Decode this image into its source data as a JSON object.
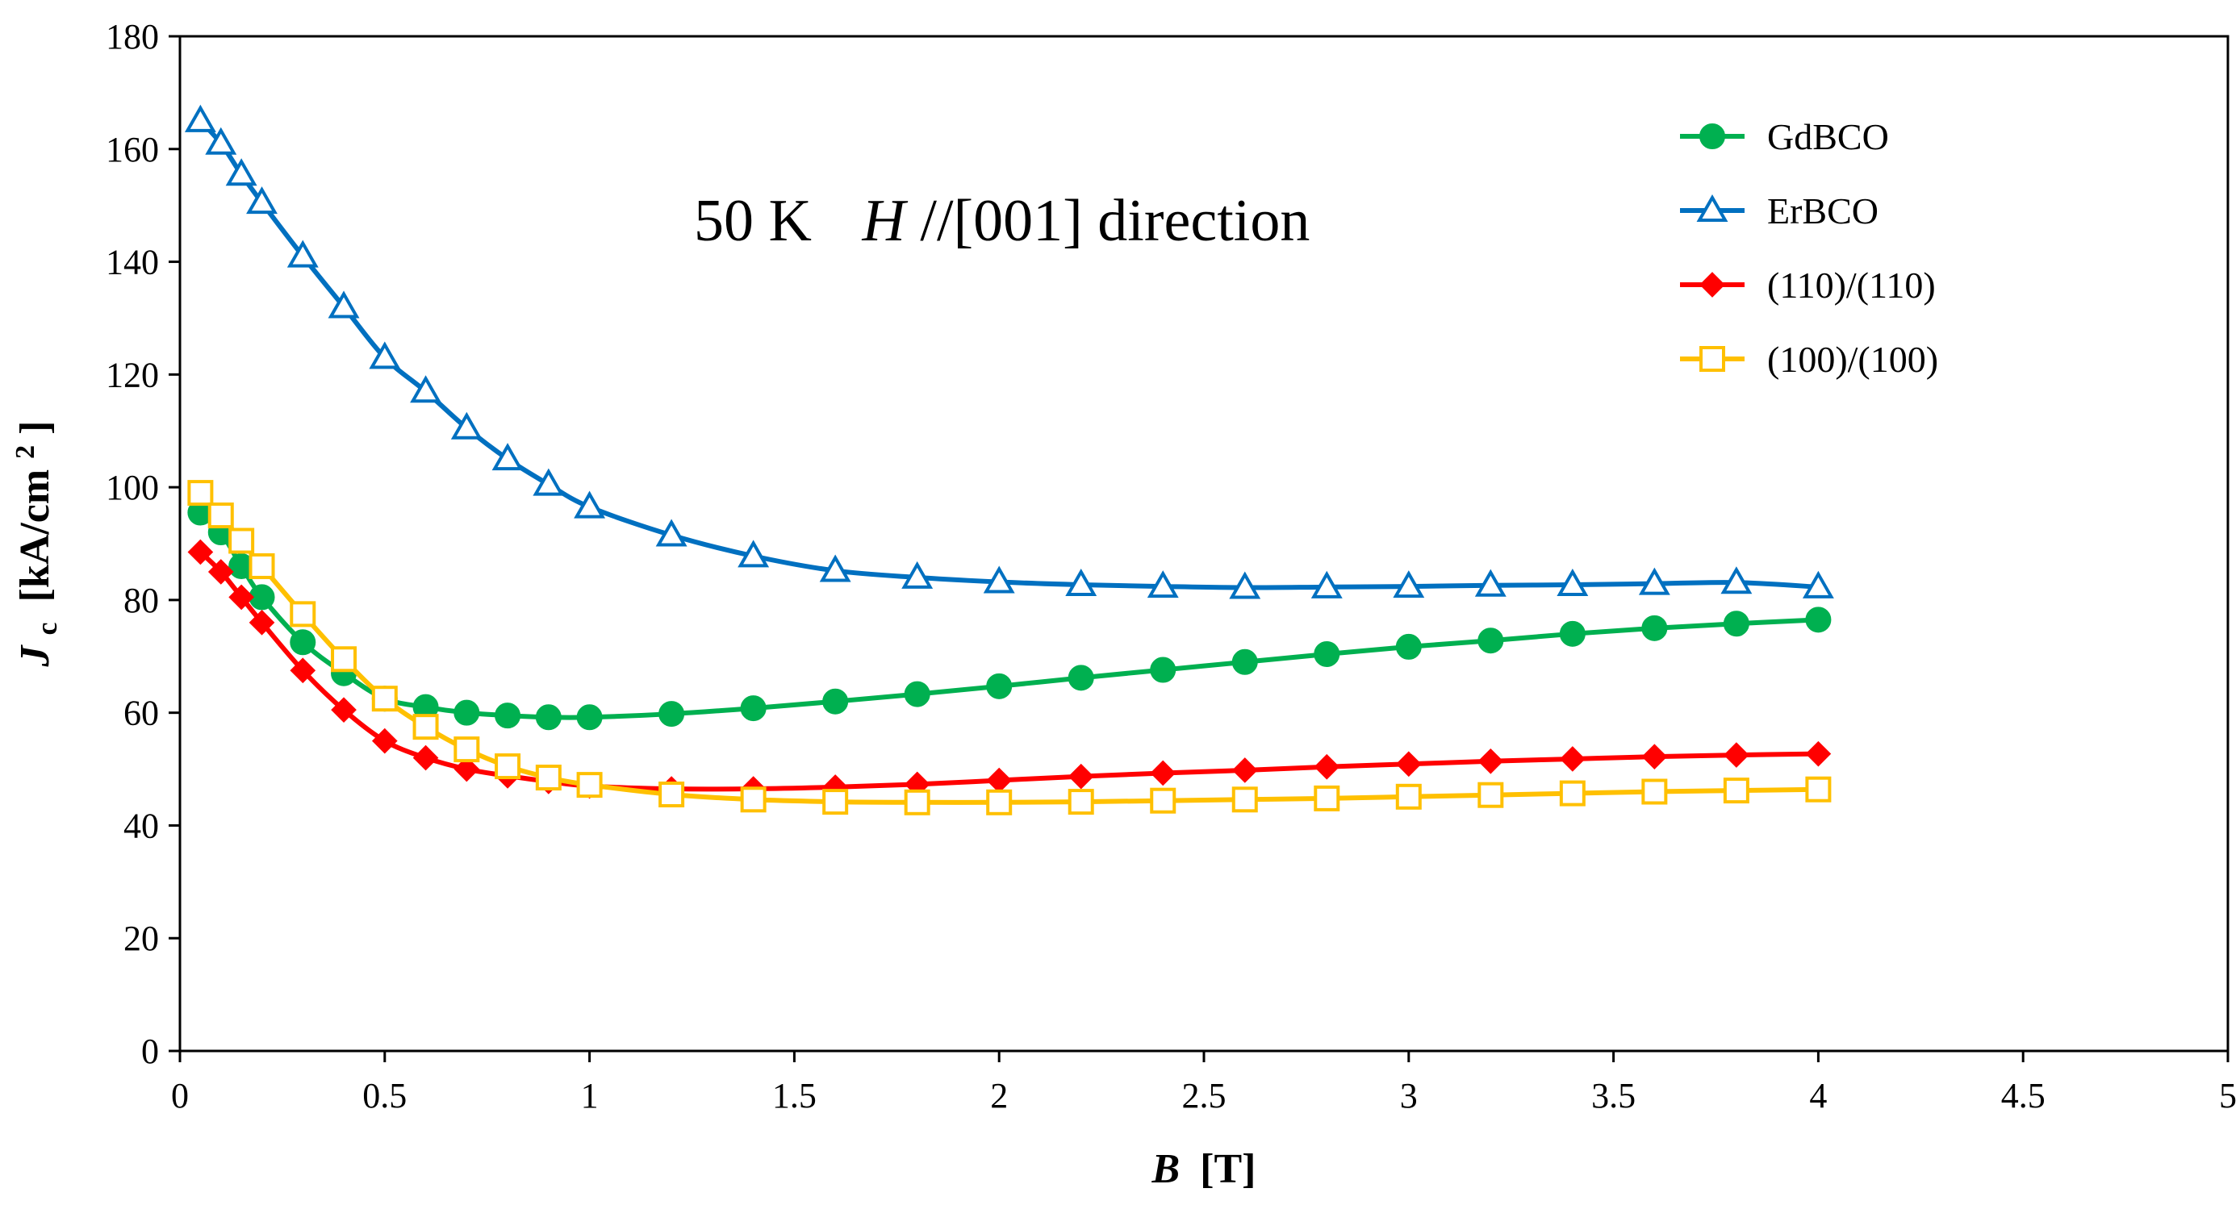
{
  "chart_data": {
    "type": "line",
    "title": {
      "prefix": "50 K",
      "field": "H",
      "suffix": "//[001] direction"
    },
    "xlabel": {
      "symbol": "B",
      "unit": "[T]"
    },
    "ylabel": {
      "symbol": "J",
      "sub": "c",
      "unit": "[kA/cm",
      "sup": "2",
      "close": "]"
    },
    "xlim": [
      0,
      5
    ],
    "ylim": [
      0,
      180
    ],
    "xticks": [
      0,
      0.5,
      1,
      1.5,
      2,
      2.5,
      3,
      3.5,
      4,
      4.5,
      5
    ],
    "xtick_labels": [
      "0",
      "0.5",
      "1",
      "1.5",
      "2",
      "2.5",
      "3",
      "3.5",
      "4",
      "4.5",
      "5"
    ],
    "yticks": [
      0,
      20,
      40,
      60,
      80,
      100,
      120,
      140,
      160,
      180
    ],
    "ytick_labels": [
      "0",
      "20",
      "40",
      "60",
      "80",
      "100",
      "120",
      "140",
      "160",
      "180"
    ],
    "grid": false,
    "legend_position": "top-right",
    "series": [
      {
        "name": "GdBCO",
        "color": "#00B050",
        "marker": "circle",
        "filled": true,
        "x": [
          0.05,
          0.1,
          0.15,
          0.2,
          0.3,
          0.4,
          0.5,
          0.6,
          0.7,
          0.8,
          0.9,
          1.0,
          1.2,
          1.4,
          1.6,
          1.8,
          2.0,
          2.2,
          2.4,
          2.6,
          2.8,
          3.0,
          3.2,
          3.4,
          3.6,
          3.8,
          4.0
        ],
        "y": [
          95.5,
          92,
          86,
          80.5,
          72.5,
          67,
          62.5,
          61,
          60,
          59.5,
          59.2,
          59.2,
          59.8,
          60.8,
          62,
          63.3,
          64.7,
          66.2,
          67.6,
          69,
          70.4,
          71.7,
          72.8,
          74,
          75,
          75.8,
          76.5
        ]
      },
      {
        "name": "ErBCO",
        "color": "#0070C0",
        "marker": "triangle",
        "filled": false,
        "x": [
          0.05,
          0.1,
          0.15,
          0.2,
          0.3,
          0.4,
          0.5,
          0.6,
          0.7,
          0.8,
          0.9,
          1.0,
          1.2,
          1.4,
          1.6,
          1.8,
          2.0,
          2.2,
          2.4,
          2.6,
          2.8,
          3.0,
          3.2,
          3.4,
          3.6,
          3.8,
          4.0
        ],
        "y": [
          165,
          161,
          155.5,
          150.5,
          141,
          132,
          123,
          117,
          110.5,
          105,
          100.5,
          96.5,
          91.5,
          87.8,
          85.2,
          84,
          83.2,
          82.7,
          82.4,
          82.2,
          82.3,
          82.4,
          82.6,
          82.7,
          82.9,
          83.1,
          82.3
        ]
      },
      {
        "name": "(110)/(110)",
        "color": "#FF0000",
        "marker": "diamond",
        "filled": true,
        "x": [
          0.05,
          0.1,
          0.15,
          0.2,
          0.3,
          0.4,
          0.5,
          0.6,
          0.7,
          0.8,
          0.9,
          1.0,
          1.2,
          1.4,
          1.6,
          1.8,
          2.0,
          2.2,
          2.4,
          2.6,
          2.8,
          3.0,
          3.2,
          3.4,
          3.6,
          3.8,
          4.0
        ],
        "y": [
          88.5,
          85,
          80.5,
          76,
          67.5,
          60.5,
          55,
          52,
          50,
          48.8,
          47.8,
          47,
          46.5,
          46.5,
          46.8,
          47.3,
          48,
          48.7,
          49.3,
          49.8,
          50.4,
          50.9,
          51.4,
          51.8,
          52.2,
          52.5,
          52.7
        ]
      },
      {
        "name": "(100)/(100)",
        "color": "#FFC000",
        "marker": "square",
        "filled": false,
        "x": [
          0.05,
          0.1,
          0.15,
          0.2,
          0.3,
          0.4,
          0.5,
          0.6,
          0.7,
          0.8,
          0.9,
          1.0,
          1.2,
          1.4,
          1.6,
          1.8,
          2.0,
          2.2,
          2.4,
          2.6,
          2.8,
          3.0,
          3.2,
          3.4,
          3.6,
          3.8,
          4.0
        ],
        "y": [
          99,
          95,
          90.5,
          86,
          77.5,
          69.5,
          62.5,
          57.5,
          53.5,
          50.5,
          48.5,
          47.2,
          45.5,
          44.6,
          44.2,
          44.1,
          44.1,
          44.2,
          44.4,
          44.6,
          44.8,
          45.1,
          45.4,
          45.7,
          46,
          46.2,
          46.4
        ]
      }
    ]
  }
}
